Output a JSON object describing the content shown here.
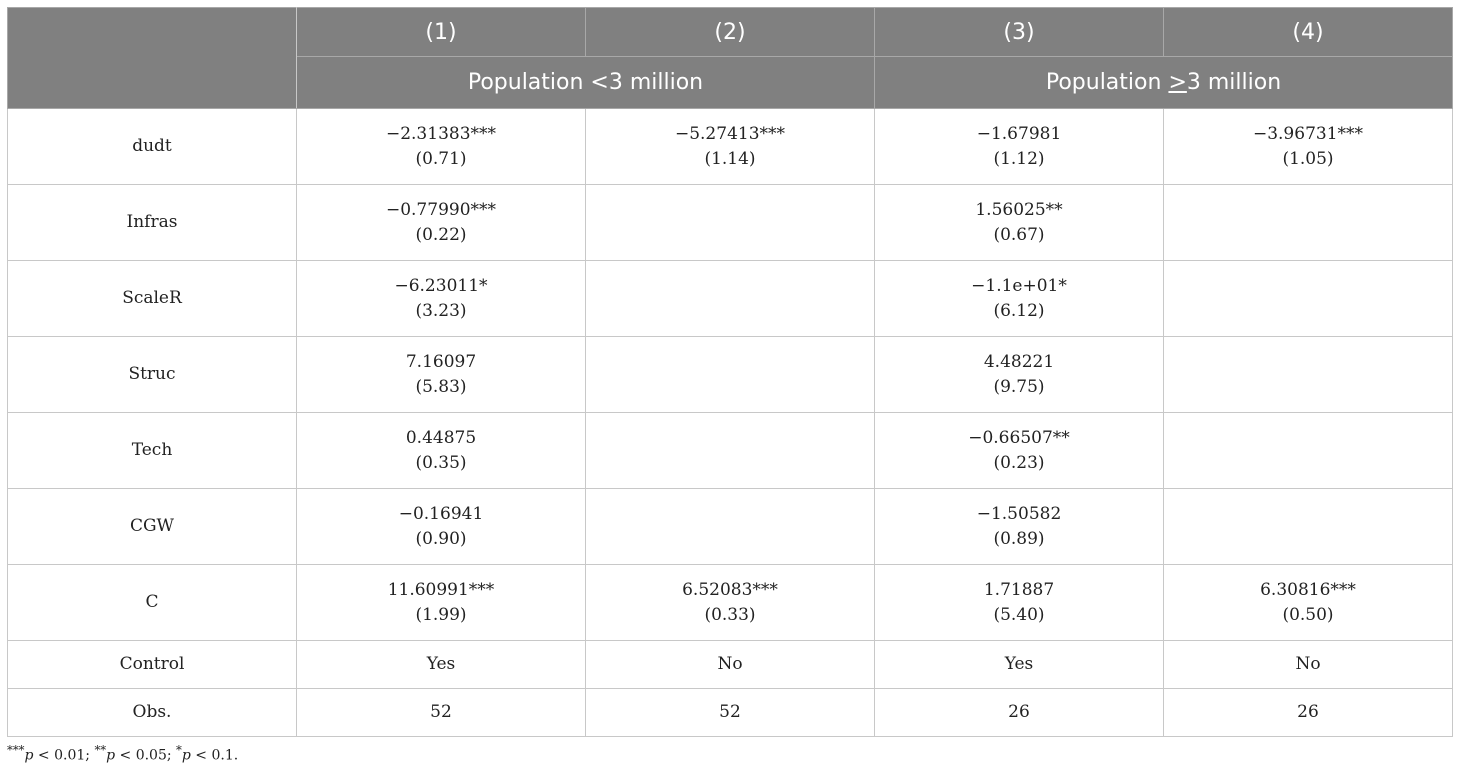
{
  "header": {
    "col_numbers": [
      "(1)",
      "(2)",
      "(3)",
      "(4)"
    ],
    "group1": "Population <3 million",
    "group2_prefix": "Population ",
    "group2_symbol": ">",
    "group2_suffix": "3 million"
  },
  "rows": [
    {
      "label": "dudt",
      "cells": [
        [
          "−2.31383***",
          "(0.71)"
        ],
        [
          "−5.27413***",
          "(1.14)"
        ],
        [
          "−1.67981",
          "(1.12)"
        ],
        [
          "−3.96731***",
          "(1.05)"
        ]
      ]
    },
    {
      "label": "Infras",
      "cells": [
        [
          "−0.77990***",
          "(0.22)"
        ],
        [
          "",
          ""
        ],
        [
          "1.56025**",
          "(0.67)"
        ],
        [
          "",
          ""
        ]
      ]
    },
    {
      "label": "ScaleR",
      "cells": [
        [
          "−6.23011*",
          "(3.23)"
        ],
        [
          "",
          ""
        ],
        [
          "−1.1e+01*",
          "(6.12)"
        ],
        [
          "",
          ""
        ]
      ]
    },
    {
      "label": "Struc",
      "cells": [
        [
          "7.16097",
          "(5.83)"
        ],
        [
          "",
          ""
        ],
        [
          "4.48221",
          "(9.75)"
        ],
        [
          "",
          ""
        ]
      ]
    },
    {
      "label": "Tech",
      "cells": [
        [
          "0.44875",
          "(0.35)"
        ],
        [
          "",
          ""
        ],
        [
          "−0.66507**",
          "(0.23)"
        ],
        [
          "",
          ""
        ]
      ]
    },
    {
      "label": "CGW",
      "cells": [
        [
          "−0.16941",
          "(0.90)"
        ],
        [
          "",
          ""
        ],
        [
          "−1.50582",
          "(0.89)"
        ],
        [
          "",
          ""
        ]
      ]
    },
    {
      "label": "C",
      "cells": [
        [
          "11.60991***",
          "(1.99)"
        ],
        [
          "6.52083***",
          "(0.33)"
        ],
        [
          "1.71887",
          "(5.40)"
        ],
        [
          "6.30816***",
          "(0.50)"
        ]
      ]
    }
  ],
  "short_rows": [
    {
      "label": "Control",
      "cells": [
        "Yes",
        "No",
        "Yes",
        "No"
      ]
    },
    {
      "label": "Obs.",
      "cells": [
        "52",
        "52",
        "26",
        "26"
      ]
    }
  ],
  "footnote": {
    "s1": "***",
    "p1": "p",
    "t1": " < 0.01; ",
    "s2": "**",
    "p2": "p",
    "t2": " < 0.05; ",
    "s3": "*",
    "p3": "p",
    "t3": " < 0.1."
  }
}
